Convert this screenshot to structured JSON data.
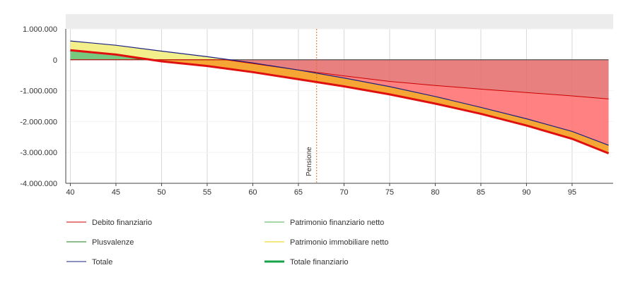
{
  "chart_data": {
    "type": "area",
    "x_ticks": [
      40,
      45,
      50,
      55,
      60,
      65,
      70,
      75,
      80,
      85,
      90,
      95
    ],
    "xlim": [
      39.5,
      99.5
    ],
    "ylim": [
      -4000000,
      1000000
    ],
    "y_ticks": [
      1000000,
      0,
      -1000000,
      -2000000,
      -3000000,
      -4000000
    ],
    "y_tick_labels": [
      "1.000.000",
      "0",
      "-1.000.000",
      "-2.000.000",
      "-3.000.000",
      "-4.000.000"
    ],
    "grid": "vertical",
    "legend_position": "bottom",
    "annotation": {
      "label": "Pensione",
      "x": 67
    },
    "series": [
      {
        "name": "Debito finanziario",
        "color": "#cc0000",
        "x": [
          40,
          57,
          60,
          65,
          70,
          75,
          80,
          85,
          90,
          95,
          99
        ],
        "values": [
          0,
          0,
          -120000,
          -330000,
          -520000,
          -700000,
          -830000,
          -950000,
          -1060000,
          -1170000,
          -1270000
        ]
      },
      {
        "name": "Patrimonio finanziario netto",
        "color": "#4caf50",
        "x": [],
        "values": []
      },
      {
        "name": "Plusvalenze",
        "color": "#1b7a1b",
        "x": [
          40,
          45,
          48
        ],
        "values": [
          310000,
          170000,
          0
        ]
      },
      {
        "name": "Patrimonio immobiliare netto",
        "color": "#e6d200",
        "x": [],
        "values": []
      },
      {
        "name": "Totale",
        "color": "#1a237e",
        "x": [
          40,
          45,
          50,
          55,
          60,
          65,
          70,
          75,
          80,
          85,
          90,
          95,
          99
        ],
        "values": [
          610000,
          470000,
          280000,
          100000,
          -100000,
          -330000,
          -590000,
          -870000,
          -1190000,
          -1540000,
          -1910000,
          -2320000,
          -2770000
        ]
      },
      {
        "name": "Totale finanziario",
        "color": "#e01010",
        "x": [
          40,
          45,
          50,
          55,
          60,
          65,
          70,
          75,
          80,
          85,
          90,
          95,
          99
        ],
        "values": [
          310000,
          170000,
          -50000,
          -200000,
          -400000,
          -630000,
          -860000,
          -1120000,
          -1420000,
          -1750000,
          -2130000,
          -2560000,
          -3030000
        ]
      }
    ],
    "legend": [
      {
        "name": "Debito finanziario",
        "color": "#cc0000",
        "bold": false
      },
      {
        "name": "Patrimonio finanziario netto",
        "color": "#4caf50",
        "bold": false
      },
      {
        "name": "Plusvalenze",
        "color": "#1b7a1b",
        "bold": false
      },
      {
        "name": "Patrimonio immobiliare netto",
        "color": "#e6d200",
        "bold": false
      },
      {
        "name": "Totale",
        "color": "#1a237e",
        "bold": false
      },
      {
        "name": "Totale finanziario",
        "color": "#16a34a",
        "bold": true
      }
    ]
  }
}
